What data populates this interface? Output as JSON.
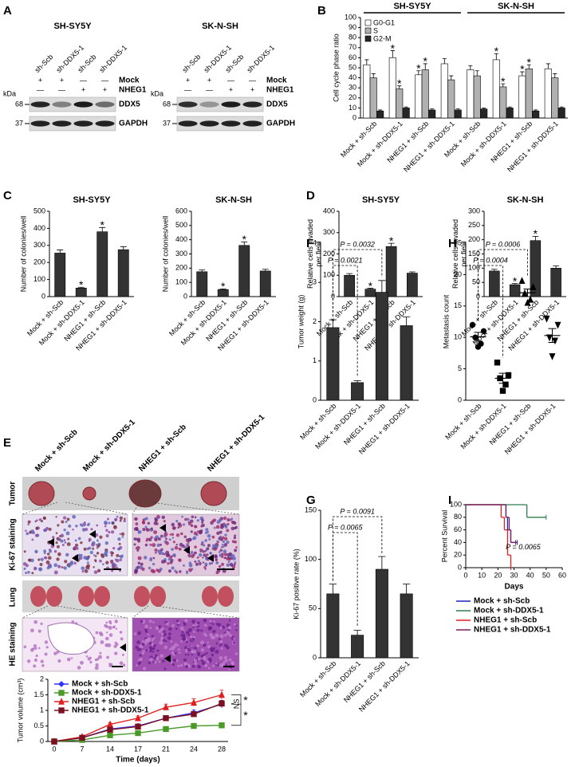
{
  "panel_labels": [
    "A",
    "B",
    "C",
    "D",
    "E",
    "F",
    "G",
    "H",
    "I"
  ],
  "blot": {
    "cell_lines": [
      "SH-SY5Y",
      "SK-N-SH"
    ],
    "lanes": [
      "sh-Scb",
      "sh-DDX5-1",
      "sh-Scb",
      "sh-DDX5-1"
    ],
    "rows": [
      {
        "label": "Mock",
        "signs": [
          "+",
          "+",
          "—",
          "—"
        ]
      },
      {
        "label": "NHEG1",
        "signs": [
          "—",
          "—",
          "+",
          "+"
        ]
      }
    ],
    "unit": "kDa",
    "bands": [
      {
        "size": "68",
        "label": "DDX5"
      },
      {
        "size": "37",
        "label": "GAPDH"
      }
    ]
  },
  "panel_e": {
    "treatments": [
      "Mock + sh-Scb",
      "Mock + sh-DDX5-1",
      "NHEG1 + sh-Scb",
      "NHEG1 + sh-DDX5-1"
    ],
    "rows": [
      "Tumor",
      "Ki-67 staining",
      "Lung",
      "HE staining"
    ]
  },
  "chart_data": [
    {
      "type": "bar",
      "ylabel": "Cell cycle phase ratio",
      "groups": [
        "SH-SY5Y",
        "SK-N-SH"
      ],
      "categories": [
        "Mock + sh-Scb",
        "Mock + sh-DDX5-1",
        "NHEG1 + sh-Scb",
        "NHEG1 + sh-DDX5-1",
        "Mock + sh-Scb",
        "Mock + sh-DDX5-1",
        "NHEG1 + sh-Scb",
        "NHEG1 + sh-DDX5-1"
      ],
      "series": [
        {
          "name": "G0-G1",
          "color": "#ffffff",
          "values": [
            53,
            60,
            43,
            54,
            48,
            58,
            42,
            49
          ],
          "errors": [
            5,
            7,
            4,
            5,
            4,
            6,
            4,
            5
          ],
          "stars": [
            null,
            "*",
            "*",
            null,
            null,
            "*",
            "*",
            null
          ]
        },
        {
          "name": "S",
          "color": "#b0b0b0",
          "values": [
            40,
            29,
            48,
            38,
            42,
            31,
            49,
            40
          ],
          "errors": [
            4,
            3,
            6,
            4,
            5,
            3,
            4,
            4
          ],
          "stars": [
            null,
            "*",
            "*",
            null,
            null,
            "*",
            "*",
            null
          ]
        },
        {
          "name": "G2-M",
          "color": "#262626",
          "values": [
            7,
            10,
            8,
            8,
            9,
            10,
            7,
            10
          ],
          "errors": [
            1,
            1,
            1,
            1,
            1,
            1,
            1,
            1
          ]
        }
      ],
      "ylim": [
        0,
        100
      ],
      "yticks": [
        0,
        10,
        20,
        30,
        40,
        50,
        60,
        70,
        80,
        90,
        100
      ]
    },
    {
      "type": "bar",
      "title": "SH-SY5Y",
      "ylabel": "Number of colonies/well",
      "categories": [
        "Mock + sh-Scb",
        "Mock + sh-DDX5-1",
        "NHEG1 + sh-Scb",
        "NHEG1 + sh-DDX5-1"
      ],
      "values": [
        255,
        50,
        380,
        275
      ],
      "errors": [
        18,
        5,
        25,
        18
      ],
      "stars": [
        null,
        "*",
        "*",
        null
      ],
      "color": "#333333",
      "ylim": [
        0,
        500
      ],
      "yticks": [
        0,
        100,
        200,
        300,
        400,
        500
      ]
    },
    {
      "type": "bar",
      "title": "SK-N-SH",
      "ylabel": "Number of colonies/well",
      "categories": [
        "Mock + sh-Scb",
        "Mock + sh-DDX5-1",
        "NHEG1 + sh-Scb",
        "NHEG1 + sh-DDX5-1"
      ],
      "values": [
        175,
        50,
        360,
        180
      ],
      "errors": [
        12,
        4,
        25,
        12
      ],
      "stars": [
        null,
        "*",
        "*",
        null
      ],
      "color": "#333333",
      "ylim": [
        0,
        600
      ],
      "yticks": [
        0,
        100,
        200,
        300,
        400,
        500,
        600
      ]
    },
    {
      "type": "bar",
      "title": "SH-SY5Y",
      "ylabel": "Relative cells invaded per field",
      "categories": [
        "Mock + sh-Scb",
        "Mock + sh-DDX5-1",
        "NHEG1 + sh-Scb",
        "NHEG1 + sh-DDX5-1"
      ],
      "values": [
        100,
        35,
        235,
        110
      ],
      "errors": [
        8,
        4,
        15,
        6
      ],
      "stars": [
        null,
        "*",
        "*",
        null
      ],
      "color": "#333333",
      "ylim": [
        0,
        400
      ],
      "yticks": [
        0,
        100,
        200,
        300,
        400
      ]
    },
    {
      "type": "bar",
      "title": "SK-N-SH",
      "ylabel": "Relative cells invaded per field",
      "categories": [
        "Mock + sh-Scb",
        "Mock + sh-DDX5-1",
        "NHEG1 + sh-Scb",
        "NHEG1 + sh-DDX5-1"
      ],
      "values": [
        90,
        42,
        197,
        100
      ],
      "errors": [
        6,
        4,
        15,
        8
      ],
      "stars": [
        null,
        "*",
        "*",
        null
      ],
      "color": "#333333",
      "ylim": [
        0,
        300
      ],
      "yticks": [
        0,
        50,
        100,
        150,
        200,
        250,
        300
      ]
    },
    {
      "type": "line",
      "xlabel": "Time (days)",
      "ylabel": "Tumor volume (cm³)",
      "categories": [
        "0",
        "7",
        "14",
        "17",
        "21",
        "24",
        "28"
      ],
      "series": [
        {
          "name": "Mock + sh-Scb",
          "color": "#3030ff",
          "values": [
            0,
            0.12,
            0.4,
            0.5,
            0.75,
            0.92,
            1.2
          ],
          "errors": [
            0,
            0.02,
            0.04,
            0.05,
            0.08,
            0.1,
            0.12
          ]
        },
        {
          "name": "Mock + sh-DDX5-1",
          "color": "#4a9a2a",
          "values": [
            0,
            0.05,
            0.2,
            0.27,
            0.4,
            0.5,
            0.52
          ],
          "errors": [
            0,
            0.02,
            0.03,
            0.03,
            0.05,
            0.07,
            0.08
          ]
        },
        {
          "name": "NHEG1 + sh-Scb",
          "color": "#e02020",
          "values": [
            0,
            0.15,
            0.55,
            0.75,
            1.1,
            1.25,
            1.5
          ],
          "errors": [
            0,
            0.03,
            0.05,
            0.07,
            0.1,
            0.12,
            0.15
          ]
        },
        {
          "name": "NHEG1 + sh-DDX5-1",
          "color": "#7a1020",
          "values": [
            0,
            0.12,
            0.38,
            0.48,
            0.75,
            0.88,
            1.22
          ],
          "errors": [
            0,
            0.02,
            0.04,
            0.05,
            0.07,
            0.08,
            0.1
          ]
        }
      ],
      "ylim": [
        0,
        2
      ],
      "yticks": [
        0,
        0.5,
        1,
        1.5,
        2
      ],
      "annotations": [
        "NS",
        "*",
        "*"
      ]
    },
    {
      "type": "bar",
      "ylabel": "Tumor weight (g)",
      "categories": [
        "Mock + sh-Scb",
        "Mock + sh-DDX5-1",
        "NHEG1 + sh-Scb",
        "NHEG1 + sh-DDX5-1"
      ],
      "values": [
        1.85,
        0.45,
        2.75,
        1.9
      ],
      "errors": [
        0.2,
        0.05,
        0.3,
        0.22
      ],
      "color": "#333333",
      "ylim": [
        0,
        4
      ],
      "yticks": [
        0,
        1,
        2,
        3,
        4
      ],
      "annotations": [
        "P = 0.0032",
        "P = 0.0021"
      ]
    },
    {
      "type": "bar",
      "ylabel": "Ki-67 positive rate (%)",
      "categories": [
        "Mock + sh-Scb",
        "Mock + sh-DDX5-1",
        "NHEG1 + sh-Scb",
        "NHEG1 + sh-DDX5-1"
      ],
      "values": [
        65,
        23,
        90,
        65
      ],
      "errors": [
        10,
        5,
        13,
        10
      ],
      "color": "#333333",
      "ylim": [
        0,
        150
      ],
      "yticks": [
        0,
        50,
        100,
        150
      ],
      "annotations": [
        "P = 0.0091",
        "P = 0.0065"
      ]
    },
    {
      "type": "scatter",
      "ylabel": "Metastasis count",
      "categories": [
        "Mock + sh-Scb",
        "Mock + sh-DDX5-1",
        "NHEG1 + sh-Scb",
        "NHEG1 + sh-DDX5-1"
      ],
      "values": [
        [
          12,
          11,
          10,
          9,
          8.5
        ],
        [
          6,
          4,
          3.5,
          2.5,
          1.5
        ],
        [
          19,
          18,
          17,
          16,
          15.5
        ],
        [
          13,
          12,
          10,
          9.5,
          7
        ]
      ],
      "means": [
        10.1,
        3.5,
        17.1,
        10.3
      ],
      "errors": [
        0.7,
        0.8,
        0.6,
        1.1
      ],
      "color": "#000000",
      "ylim": [
        0,
        25
      ],
      "yticks": [
        0,
        5,
        10,
        15,
        20,
        25
      ],
      "annotations": [
        "P = 0.0006",
        "P = 0.0004"
      ]
    },
    {
      "type": "line",
      "step": true,
      "xlabel": "Days",
      "ylabel": "Percent Survival",
      "xlim": [
        0,
        60
      ],
      "xticks": [
        0,
        10,
        20,
        30,
        40,
        50,
        60
      ],
      "ylim": [
        0,
        100
      ],
      "yticks": [
        0,
        20,
        40,
        60,
        80,
        100
      ],
      "series": [
        {
          "name": "Mock + sh-Scb",
          "color": "#1f1fbf",
          "x": [
            0,
            25,
            26,
            28,
            32
          ],
          "values": [
            100,
            80,
            60,
            40,
            40
          ]
        },
        {
          "name": "Mock + sh-DDX5-1",
          "color": "#2e7d4f",
          "x": [
            0,
            38,
            50
          ],
          "values": [
            100,
            80,
            80
          ]
        },
        {
          "name": "NHEG1 + sh-Scb",
          "color": "#e02020",
          "x": [
            0,
            22,
            24,
            26,
            28
          ],
          "values": [
            100,
            80,
            60,
            20,
            0
          ]
        },
        {
          "name": "NHEG1 + sh-DDX5-1",
          "color": "#7a1f5c",
          "x": [
            0,
            25,
            27,
            28,
            31
          ],
          "values": [
            100,
            80,
            60,
            40,
            40
          ]
        }
      ],
      "annotations": [
        "P = 0.0065"
      ]
    }
  ]
}
